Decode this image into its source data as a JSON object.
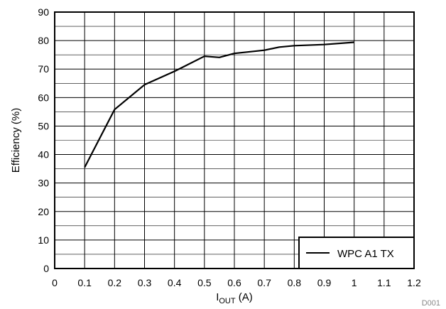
{
  "chart_data": {
    "type": "line",
    "xlabel_main": "I",
    "xlabel_sub": "OUT",
    "xlabel_unit": " (A)",
    "ylabel": "Efficiency (%)",
    "xlim": [
      0,
      1.2
    ],
    "ylim": [
      0,
      90
    ],
    "x_ticks": [
      0,
      0.1,
      0.2,
      0.3,
      0.4,
      0.5,
      0.6,
      0.7,
      0.8,
      0.9,
      1,
      1.1,
      1.2
    ],
    "x_tick_labels": [
      "0",
      "0.1",
      "0.2",
      "0.3",
      "0.4",
      "0.5",
      "0.6",
      "0.7",
      "0.8",
      "0.9",
      "1",
      "1.1",
      "1.2"
    ],
    "y_ticks": [
      0,
      10,
      20,
      30,
      40,
      50,
      60,
      70,
      80,
      90
    ],
    "y_tick_labels": [
      "0",
      "10",
      "20",
      "30",
      "40",
      "50",
      "60",
      "70",
      "80",
      "90"
    ],
    "grid": true,
    "legend_position": "bottom-right",
    "series": [
      {
        "name": "WPC A1 TX",
        "color": "#000000",
        "x": [
          0.1,
          0.2,
          0.3,
          0.4,
          0.5,
          0.55,
          0.6,
          0.7,
          0.75,
          0.8,
          0.9,
          1.0
        ],
        "y": [
          35.5,
          55.8,
          64.5,
          69.2,
          74.5,
          74.1,
          75.5,
          76.6,
          77.7,
          78.2,
          78.6,
          79.4
        ]
      }
    ],
    "watermark": "D001"
  }
}
